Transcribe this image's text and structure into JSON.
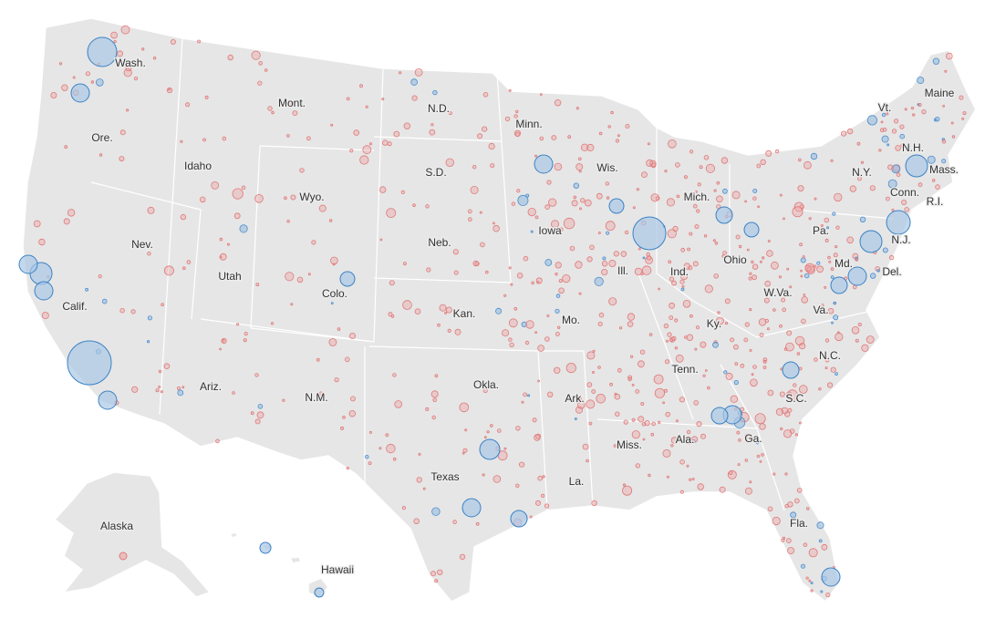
{
  "labels": [
    "Wash.",
    "Ore.",
    "Calif.",
    "Nev.",
    "Idaho",
    "Mont.",
    "Wyo.",
    "Utah",
    "Colo.",
    "Ariz.",
    "N.M.",
    "N.D.",
    "S.D.",
    "Neb.",
    "Kan.",
    "Okla.",
    "Texas",
    "Minn.",
    "Iowa",
    "Mo.",
    "Ark.",
    "La.",
    "Wis.",
    "Ill.",
    "Mich.",
    "Ind.",
    "Ohio",
    "Ky.",
    "Tenn.",
    "Miss.",
    "Ala.",
    "Ga.",
    "Fla.",
    "S.C.",
    "N.C.",
    "Va.",
    "W.Va.",
    "Pa.",
    "N.Y.",
    "Md.",
    "Del.",
    "N.J.",
    "Conn.",
    "R.I.",
    "Mass.",
    "N.H.",
    "Vt.",
    "Maine",
    "Alaska",
    "Hawaii"
  ]
}
